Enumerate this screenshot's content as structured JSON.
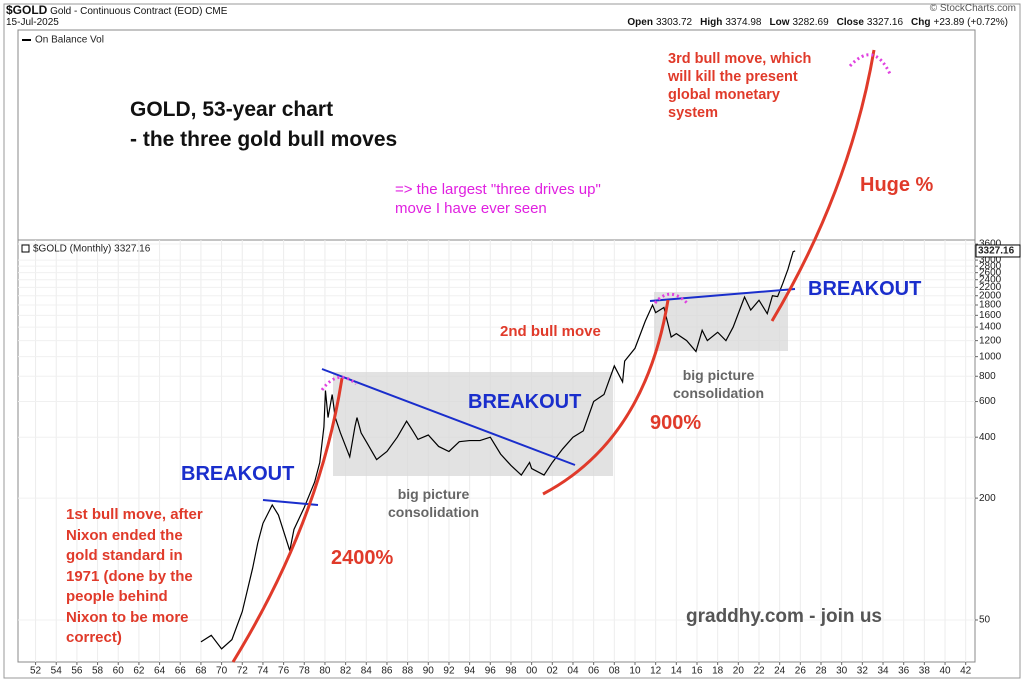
{
  "header": {
    "symbol": "$GOLD",
    "name": "Gold - Continuous Contract (EOD)",
    "exchange": "CME",
    "date": "15-Jul-2025",
    "source": "© StockCharts.com",
    "quote": [
      [
        "Open",
        "3303.72"
      ],
      [
        "High",
        "3374.98"
      ],
      [
        "Low",
        "3282.69"
      ],
      [
        "Close",
        "3327.16"
      ],
      [
        "Chg",
        "+23.89 (+0.72%)"
      ]
    ],
    "upper_panel": "On Balance Vol"
  },
  "chart_data": {
    "type": "line",
    "log_y": true,
    "grid": true,
    "annotations": [
      "GOLD, 53-year chart\n- the three gold bull moves",
      "=> the largest \"three drives up\"\nmove I have ever seen",
      "3rd bull move, which\nwill kill the present\nglobal monetary\nsystem",
      "Huge %",
      "BREAKOUT",
      "2nd bull move",
      "big picture\nconsolidation",
      "900%",
      "BREAKOUT",
      "big picture\nconsolidation",
      "BREAKOUT",
      "1st bull move, after\nNixon ended the\ngold standard in\n1971 (done by the\npeople behind\nNixon to be more\ncorrect)",
      "2400%",
      "graddhy.com - join us"
    ],
    "xlim": [
      1950.3,
      2042.9
    ],
    "ylim": [
      31,
      3770
    ],
    "xticks": [
      {
        "value": 1952,
        "label": "52"
      },
      {
        "value": 1954,
        "label": "54"
      },
      {
        "value": 1956,
        "label": "56"
      },
      {
        "value": 1958,
        "label": "58"
      },
      {
        "value": 1960,
        "label": "60"
      },
      {
        "value": 1962,
        "label": "62"
      },
      {
        "value": 1964,
        "label": "64"
      },
      {
        "value": 1966,
        "label": "66"
      },
      {
        "value": 1968,
        "label": "68"
      },
      {
        "value": 1970,
        "label": "70"
      },
      {
        "value": 1972,
        "label": "72"
      },
      {
        "value": 1974,
        "label": "74"
      },
      {
        "value": 1976,
        "label": "76"
      },
      {
        "value": 1978,
        "label": "78"
      },
      {
        "value": 1980,
        "label": "80"
      },
      {
        "value": 1982,
        "label": "82"
      },
      {
        "value": 1984,
        "label": "84"
      },
      {
        "value": 1986,
        "label": "86"
      },
      {
        "value": 1988,
        "label": "88"
      },
      {
        "value": 1990,
        "label": "90"
      },
      {
        "value": 1992,
        "label": "92"
      },
      {
        "value": 1994,
        "label": "94"
      },
      {
        "value": 1996,
        "label": "96"
      },
      {
        "value": 1998,
        "label": "98"
      },
      {
        "value": 2000,
        "label": "00"
      },
      {
        "value": 2002,
        "label": "02"
      },
      {
        "value": 2004,
        "label": "04"
      },
      {
        "value": 2006,
        "label": "06"
      },
      {
        "value": 2008,
        "label": "08"
      },
      {
        "value": 2010,
        "label": "10"
      },
      {
        "value": 2012,
        "label": "12"
      },
      {
        "value": 2014,
        "label": "14"
      },
      {
        "value": 2016,
        "label": "16"
      },
      {
        "value": 2018,
        "label": "18"
      },
      {
        "value": 2020,
        "label": "20"
      },
      {
        "value": 2022,
        "label": "22"
      },
      {
        "value": 2024,
        "label": "24"
      },
      {
        "value": 2026,
        "label": "26"
      },
      {
        "value": 2028,
        "label": "28"
      },
      {
        "value": 2030,
        "label": "30"
      },
      {
        "value": 2032,
        "label": "32"
      },
      {
        "value": 2034,
        "label": "34"
      },
      {
        "value": 2036,
        "label": "36"
      },
      {
        "value": 2038,
        "label": "38"
      },
      {
        "value": 2040,
        "label": "40"
      },
      {
        "value": 2042,
        "label": "42"
      }
    ],
    "yticks": [
      50,
      200,
      400,
      600,
      800,
      1000,
      1200,
      1400,
      1600,
      1800,
      2000,
      2200,
      2400,
      2600,
      2800,
      3000,
      3600
    ],
    "series": [
      {
        "name": "$GOLD (Monthly) 3327.16",
        "color": "#000000",
        "x": [
          1968,
          1969,
          1970,
          1971,
          1972,
          1973,
          1973.5,
          1974,
          1974.9,
          1975.5,
          1976.6,
          1977,
          1978,
          1979,
          1979.5,
          1979.9,
          1980.05,
          1980.3,
          1980.7,
          1981,
          1981.5,
          1982.4,
          1982.9,
          1983.1,
          1983.5,
          1984,
          1985,
          1986,
          1987,
          1987.9,
          1988.5,
          1989,
          1990,
          1991,
          1992,
          1993,
          1994,
          1995,
          1996,
          1997,
          1998,
          1999,
          1999.8,
          2000,
          2001.2,
          2002,
          2003,
          2004,
          2005,
          2006,
          2007,
          2008,
          2008.8,
          2009,
          2010,
          2011,
          2011.7,
          2012,
          2012.8,
          2013.5,
          2014,
          2015,
          2015.9,
          2016.5,
          2017,
          2018,
          2018.8,
          2019.5,
          2020.6,
          2021.2,
          2022,
          2022.8,
          2023.3,
          2023.8,
          2024.3,
          2024.8,
          2025.3,
          2025.5
        ],
        "values": [
          39,
          42,
          36,
          40,
          55,
          90,
          120,
          150,
          185,
          165,
          110,
          140,
          180,
          240,
          300,
          450,
          680,
          500,
          650,
          500,
          420,
          320,
          450,
          500,
          420,
          380,
          310,
          340,
          400,
          480,
          430,
          390,
          410,
          360,
          340,
          380,
          385,
          385,
          400,
          330,
          290,
          260,
          300,
          280,
          260,
          300,
          350,
          400,
          430,
          600,
          650,
          900,
          750,
          950,
          1100,
          1500,
          1800,
          1650,
          1750,
          1250,
          1300,
          1200,
          1060,
          1350,
          1200,
          1320,
          1200,
          1400,
          1970,
          1700,
          1900,
          1630,
          2000,
          1980,
          2300,
          2700,
          3300,
          3327.16
        ]
      }
    ]
  }
}
